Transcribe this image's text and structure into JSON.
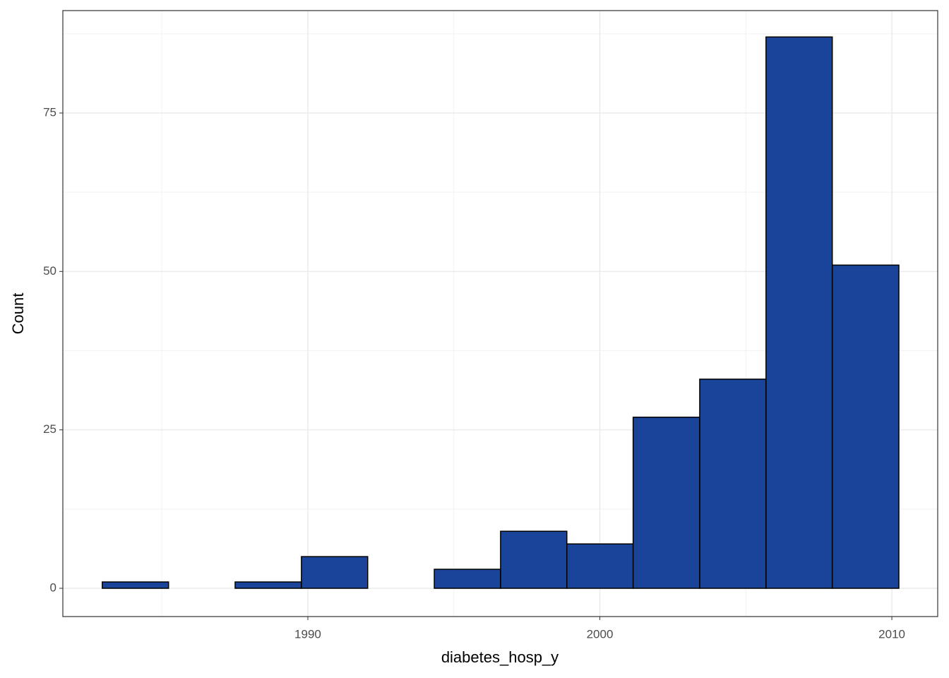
{
  "chart_data": {
    "type": "histogram",
    "x_label": "diabetes_hosp_y",
    "y_label": "Count",
    "bins": [
      1982.96,
      1985.23,
      1987.51,
      1989.78,
      1992.05,
      1994.33,
      1996.6,
      1998.87,
      2001.14,
      2003.42,
      2005.69,
      2007.96,
      2010.24
    ],
    "values": [
      1,
      0,
      1,
      5,
      0,
      3,
      9,
      7,
      27,
      33,
      87,
      51
    ],
    "color": "#1a4499",
    "edge_color": "#000000",
    "xlim": [
      1981.61,
      2011.57
    ],
    "xticks": [
      1990,
      2000,
      2010
    ],
    "minor_xticks": [
      1985,
      1995,
      2005
    ],
    "ylim": [
      -4.46,
      91.16
    ],
    "yticks": [
      0,
      25,
      50,
      75
    ],
    "minor_yticks": [
      12.5,
      37.5,
      62.5,
      87.5
    ],
    "grid": true
  }
}
